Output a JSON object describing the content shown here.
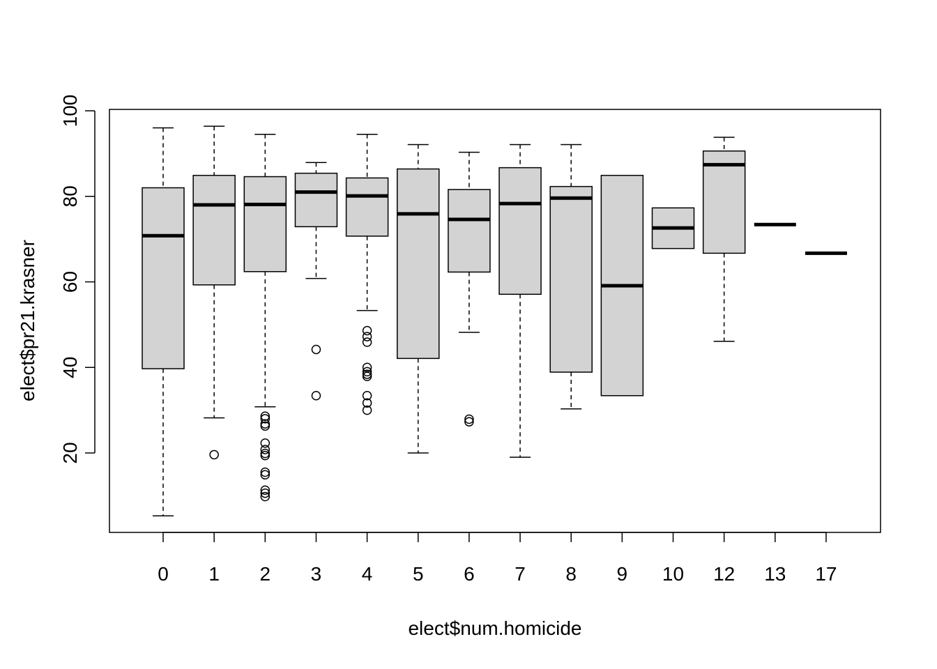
{
  "chart_data": {
    "type": "boxplot",
    "title": "",
    "xlabel": "elect$num.homicide",
    "ylabel": "elect$pr21.krasner",
    "ylim": [
      0,
      100
    ],
    "yticks": [
      20,
      40,
      60,
      80,
      100
    ],
    "grid": false,
    "box_fill": "#d3d3d3",
    "line_color": "#000000",
    "categories": [
      "0",
      "1",
      "2",
      "3",
      "4",
      "5",
      "6",
      "7",
      "8",
      "9",
      "10",
      "12",
      "13",
      "17"
    ],
    "boxes": [
      {
        "category": "0",
        "whisker_low": 5.3,
        "q1": 39.7,
        "median": 70.8,
        "q3": 82.0,
        "whisker_high": 96.0,
        "outliers": []
      },
      {
        "category": "1",
        "whisker_low": 28.2,
        "q1": 59.3,
        "median": 78.0,
        "q3": 84.9,
        "whisker_high": 96.4,
        "outliers": [
          19.6
        ]
      },
      {
        "category": "2",
        "whisker_low": 30.8,
        "q1": 62.4,
        "median": 78.1,
        "q3": 84.6,
        "whisker_high": 94.5,
        "outliers": [
          28.6,
          28.0,
          26.8,
          26.3,
          22.3,
          20.8,
          19.9,
          19.4,
          15.5,
          14.9,
          11.3,
          10.6,
          9.8
        ]
      },
      {
        "category": "3",
        "whisker_low": 60.8,
        "q1": 72.9,
        "median": 81.0,
        "q3": 85.4,
        "whisker_high": 87.9,
        "outliers": [
          44.2,
          33.4
        ]
      },
      {
        "category": "4",
        "whisker_low": 53.3,
        "q1": 70.7,
        "median": 80.1,
        "q3": 84.3,
        "whisker_high": 94.5,
        "outliers": [
          48.6,
          47.2,
          45.9,
          40.0,
          39.0,
          38.4,
          37.9,
          33.4,
          31.7,
          30.0
        ]
      },
      {
        "category": "5",
        "whisker_low": 20.0,
        "q1": 42.1,
        "median": 75.9,
        "q3": 86.4,
        "whisker_high": 92.1,
        "outliers": []
      },
      {
        "category": "6",
        "whisker_low": 48.2,
        "q1": 62.3,
        "median": 74.6,
        "q3": 81.6,
        "whisker_high": 90.3,
        "outliers": [
          27.9,
          27.3
        ]
      },
      {
        "category": "7",
        "whisker_low": 19.0,
        "q1": 57.1,
        "median": 78.3,
        "q3": 86.7,
        "whisker_high": 92.1,
        "outliers": []
      },
      {
        "category": "8",
        "whisker_low": 30.3,
        "q1": 38.9,
        "median": 79.6,
        "q3": 82.3,
        "whisker_high": 92.1,
        "outliers": []
      },
      {
        "category": "9",
        "whisker_low": 33.4,
        "q1": 33.4,
        "median": 59.1,
        "q3": 84.9,
        "whisker_high": 84.9,
        "outliers": []
      },
      {
        "category": "10",
        "whisker_low": 67.8,
        "q1": 67.8,
        "median": 72.6,
        "q3": 77.3,
        "whisker_high": 77.3,
        "outliers": []
      },
      {
        "category": "12",
        "whisker_low": 46.1,
        "q1": 66.7,
        "median": 87.4,
        "q3": 90.6,
        "whisker_high": 93.8,
        "outliers": []
      },
      {
        "category": "13",
        "whisker_low": 73.4,
        "q1": 73.4,
        "median": 73.4,
        "q3": 73.4,
        "whisker_high": 73.4,
        "outliers": []
      },
      {
        "category": "17",
        "whisker_low": 66.7,
        "q1": 66.7,
        "median": 66.7,
        "q3": 66.7,
        "whisker_high": 66.7,
        "outliers": []
      }
    ]
  }
}
